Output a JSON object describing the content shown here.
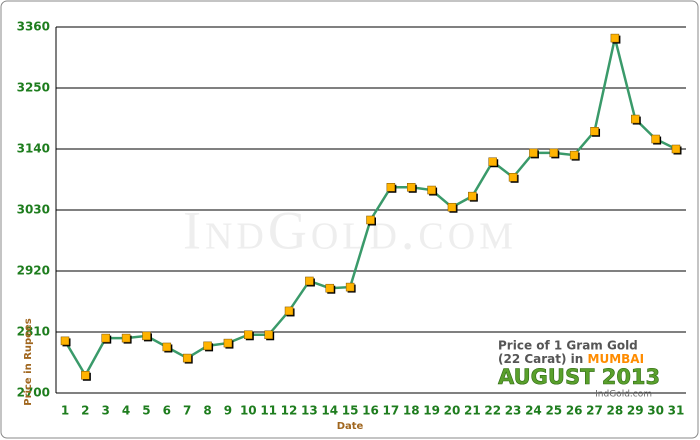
{
  "chart_data": {
    "type": "line",
    "y_label": "Price in Rupees",
    "x_label": "Date",
    "annotation_line1": "Price of 1 Gram Gold",
    "annotation_line2_a": "(22 Carat) in ",
    "annotation_line2_b": "MUMBAI",
    "annotation_month": "AUGUST 2013",
    "source": "IndGold.com",
    "watermark": "IndGold.com",
    "categories": [
      "1",
      "2",
      "3",
      "4",
      "5",
      "6",
      "7",
      "8",
      "9",
      "10",
      "11",
      "12",
      "13",
      "14",
      "15",
      "16",
      "17",
      "18",
      "19",
      "20",
      "21",
      "22",
      "23",
      "24",
      "25",
      "26",
      "27",
      "28",
      "29",
      "30",
      "31"
    ],
    "series": [
      {
        "name": "Price",
        "color": "#3a9a6a",
        "marker_color": "#ffb300",
        "values": [
          2794,
          2732,
          2799,
          2799,
          2803,
          2783,
          2763,
          2785,
          2790,
          2805,
          2805,
          2848,
          2902,
          2889,
          2891,
          3012,
          3071,
          3071,
          3066,
          3035,
          3055,
          3117,
          3089,
          3133,
          3133,
          3129,
          3172,
          3340,
          3194,
          3158,
          3140
        ]
      }
    ],
    "ylim": [
      2700,
      3360
    ],
    "yticks": [
      2700,
      2810,
      2920,
      3030,
      3140,
      3250,
      3360
    ],
    "grid": true
  }
}
